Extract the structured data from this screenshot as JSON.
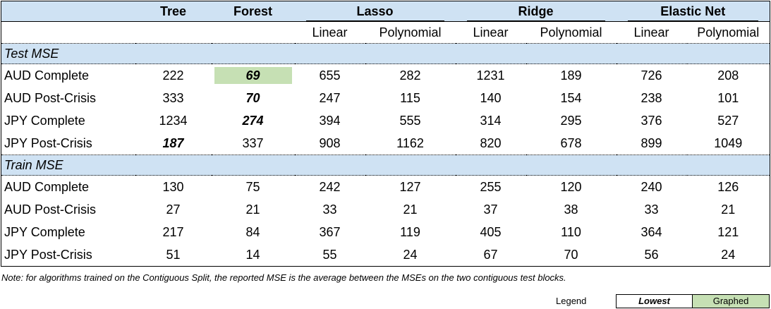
{
  "header": {
    "tree": "Tree",
    "forest": "Forest",
    "lasso": "Lasso",
    "ridge": "Ridge",
    "elastic": "Elastic Net",
    "linear": "Linear",
    "polynomial": "Polynomial"
  },
  "sections": [
    {
      "title": "Test MSE",
      "rows": [
        {
          "label": "AUD Complete",
          "values": [
            "222",
            "69",
            "655",
            "282",
            "1231",
            "189",
            "726",
            "208"
          ]
        },
        {
          "label": "AUD Post-Crisis",
          "values": [
            "333",
            "70",
            "247",
            "115",
            "140",
            "154",
            "238",
            "101"
          ]
        },
        {
          "label": "JPY Complete",
          "values": [
            "1234",
            "274",
            "394",
            "555",
            "314",
            "295",
            "376",
            "527"
          ]
        },
        {
          "label": "JPY Post-Crisis",
          "values": [
            "187",
            "337",
            "908",
            "1162",
            "820",
            "678",
            "899",
            "1049"
          ]
        }
      ]
    },
    {
      "title": "Train MSE",
      "rows": [
        {
          "label": "AUD Complete",
          "values": [
            "130",
            "75",
            "242",
            "127",
            "255",
            "120",
            "240",
            "126"
          ]
        },
        {
          "label": "AUD Post-Crisis",
          "values": [
            "27",
            "21",
            "33",
            "21",
            "37",
            "38",
            "33",
            "21"
          ]
        },
        {
          "label": "JPY Complete",
          "values": [
            "217",
            "84",
            "367",
            "119",
            "405",
            "110",
            "364",
            "121"
          ]
        },
        {
          "label": "JPY Post-Crisis",
          "values": [
            "51",
            "14",
            "55",
            "24",
            "67",
            "70",
            "56",
            "24"
          ]
        }
      ]
    }
  ],
  "note": "Note: for algorithms trained on the Contiguous Split, the reported MSE is the average between the MSEs on the two contiguous test blocks.",
  "legend": {
    "label": "Legend",
    "lowest": "Lowest",
    "graphed": "Graphed"
  },
  "colors": {
    "header_bg": "#cfe2f3",
    "graphed_bg": "#c6e0b4"
  }
}
